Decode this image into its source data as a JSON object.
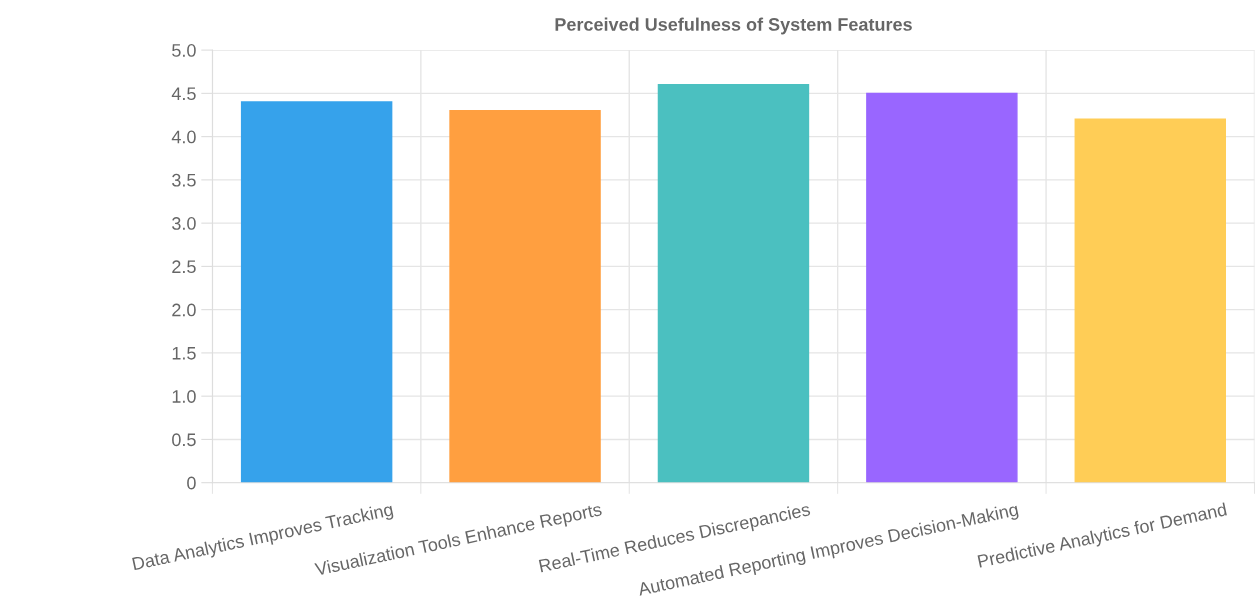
{
  "chart_data": {
    "type": "bar",
    "title": "Perceived Usefulness of System Features",
    "categories": [
      "Data Analytics Improves Tracking",
      "Visualization Tools Enhance Reports",
      "Real-Time Reduces Discrepancies",
      "Automated Reporting Improves Decision-Making",
      "Predictive Analytics for Demand"
    ],
    "values": [
      4.4,
      4.3,
      4.6,
      4.5,
      4.2
    ],
    "colors": [
      "#36a2eb",
      "#ff9f40",
      "#4bc0c0",
      "#9966ff",
      "#ffcd56"
    ],
    "ylim": [
      0,
      5
    ],
    "yticks": [
      0,
      {
        "value": 0.5,
        "label": "0.5"
      },
      {
        "value": 1,
        "label": "1.0"
      },
      {
        "value": 1.5,
        "label": "1.5"
      },
      {
        "value": 2,
        "label": "2.0"
      },
      {
        "value": 2.5,
        "label": "2.5"
      },
      {
        "value": 3,
        "label": "3.0"
      },
      {
        "value": 3.5,
        "label": "3.5"
      },
      {
        "value": 4,
        "label": "4.0"
      },
      {
        "value": 4.5,
        "label": "4.5"
      },
      {
        "value": 5,
        "label": "5.0"
      }
    ],
    "grid": true
  }
}
